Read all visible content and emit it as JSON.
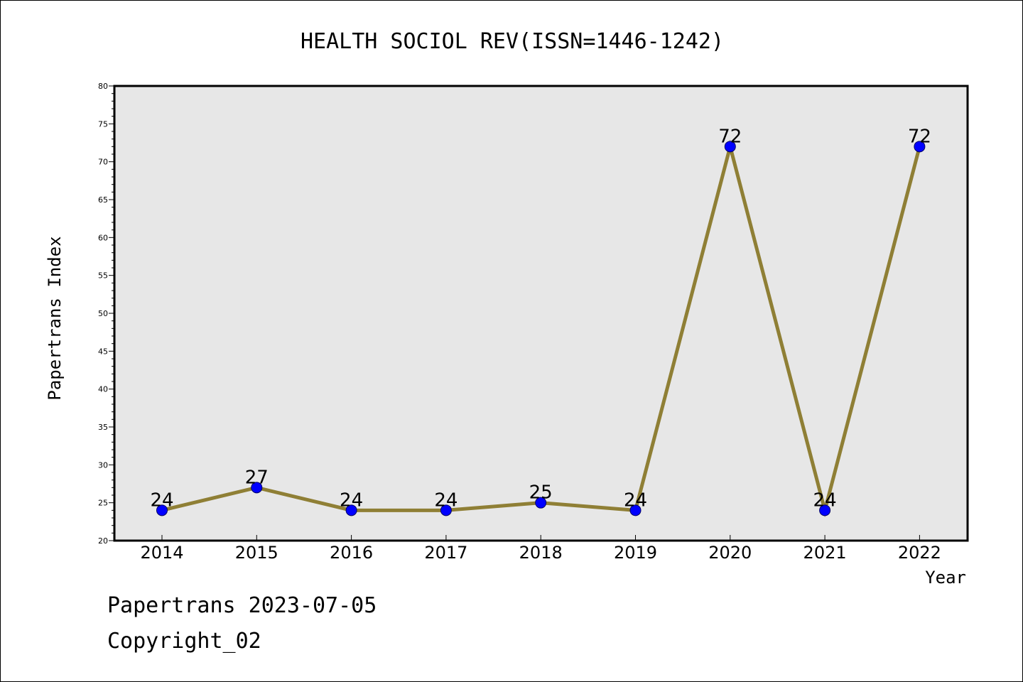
{
  "chart_data": {
    "type": "line",
    "title": "HEALTH SOCIOL REV(ISSN=1446-1242)",
    "xlabel": "Year",
    "ylabel": "Papertrans Index",
    "categories": [
      "2014",
      "2015",
      "2016",
      "2017",
      "2018",
      "2019",
      "2020",
      "2021",
      "2022"
    ],
    "series": [
      {
        "values": [
          24,
          27,
          24,
          24,
          25,
          24,
          72,
          24,
          72
        ]
      }
    ],
    "data_labels": [
      "24",
      "27",
      "24",
      "24",
      "25",
      "24",
      "72",
      "24",
      "72"
    ],
    "ylim": [
      20,
      80
    ],
    "yticks": [
      20,
      25,
      30,
      35,
      40,
      45,
      50,
      55,
      60,
      65,
      70,
      75,
      80
    ],
    "grid": false,
    "line_color": "#8f7f35",
    "marker_color": "#0000ff",
    "plot_background": "#e7e7e7"
  },
  "footer": {
    "date_line": "Papertrans 2023-07-05",
    "copyright_line": "Copyright_02"
  }
}
